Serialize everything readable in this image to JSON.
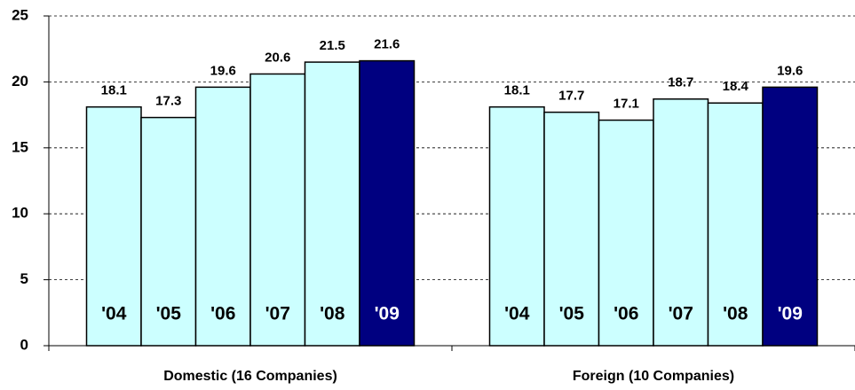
{
  "chart_data": {
    "type": "bar",
    "categories": [
      "Domestic (16 Companies)",
      "Foreign (10 Companies)"
    ],
    "series": [
      {
        "name": "'04",
        "color": "#ccffff",
        "values": [
          18.1,
          18.1
        ]
      },
      {
        "name": "'05",
        "color": "#ccffff",
        "values": [
          17.3,
          17.7
        ]
      },
      {
        "name": "'06",
        "color": "#ccffff",
        "values": [
          19.6,
          17.1
        ]
      },
      {
        "name": "'07",
        "color": "#ccffff",
        "values": [
          20.6,
          18.7
        ]
      },
      {
        "name": "'08",
        "color": "#ccffff",
        "values": [
          21.5,
          18.4
        ]
      },
      {
        "name": "'09",
        "color": "#000080",
        "values": [
          21.6,
          19.6
        ]
      }
    ],
    "ylim": [
      0,
      25
    ],
    "yticks": [
      0,
      5,
      10,
      15,
      20,
      25
    ],
    "grid": true
  }
}
